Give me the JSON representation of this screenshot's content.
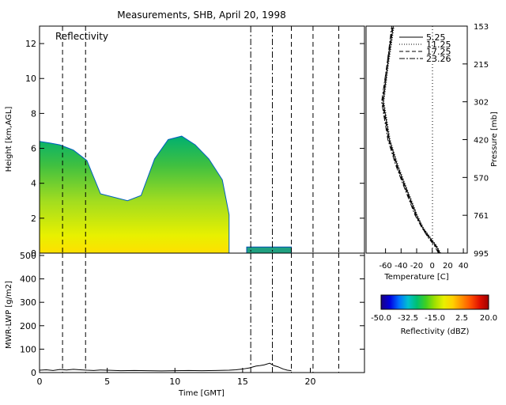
{
  "title": "Measurements, SHB, April 20, 1998",
  "chart_data": [
    {
      "type": "heatmap",
      "annotation": "Reflectivity",
      "ylabel": "Height [km,AGL]",
      "xlim": [
        0,
        24
      ],
      "ylim": [
        0,
        13
      ],
      "yticks": [
        0,
        2,
        4,
        6,
        8,
        10,
        12
      ],
      "value_unit": "dBZ",
      "vertical_markers_gmt": [
        1.7,
        3.4,
        15.6,
        17.2,
        18.6,
        20.2,
        22.1
      ],
      "echo_regions": [
        {
          "x": [
            0.0,
            0.8,
            1.5,
            2.5,
            3.5,
            4.5,
            5.5,
            6.5,
            7.5,
            8.5,
            9.5,
            10.5,
            11.5,
            12.5,
            13.5,
            14.0
          ],
          "top": [
            6.4,
            6.3,
            6.2,
            5.9,
            5.3,
            3.4,
            3.2,
            3.0,
            3.3,
            5.4,
            6.5,
            6.7,
            6.2,
            5.4,
            4.2,
            2.2
          ]
        },
        {
          "x_range": [
            15.3,
            18.6
          ],
          "top": 0.35
        }
      ]
    },
    {
      "type": "line",
      "ylabel": "MWR-LWP [g/m2]",
      "xlabel": "Time [GMT]",
      "xlim": [
        0,
        24
      ],
      "ylim": [
        0,
        510
      ],
      "xticks": [
        0,
        5,
        10,
        15,
        20
      ],
      "yticks": [
        0,
        100,
        200,
        300,
        400,
        500
      ],
      "vertical_markers_gmt": [
        1.7,
        3.4,
        15.6,
        17.2,
        18.6,
        20.2,
        22.1
      ],
      "x": [
        0,
        0.5,
        1,
        1.5,
        2,
        2.5,
        3,
        3.5,
        4,
        4.5,
        5,
        6,
        7,
        8,
        9,
        10,
        11,
        12,
        13,
        14,
        14.5,
        15,
        15.5,
        16,
        16.3,
        16.6,
        17,
        17.3,
        17.6,
        18,
        18.3,
        18.6
      ],
      "y": [
        10,
        12,
        9,
        13,
        11,
        14,
        12,
        10,
        9,
        11,
        10,
        8,
        9,
        8,
        7,
        8,
        9,
        8,
        9,
        10,
        12,
        15,
        20,
        28,
        30,
        33,
        40,
        30,
        25,
        15,
        10,
        8
      ]
    },
    {
      "type": "line",
      "xlabel": "Temperature [C]",
      "ylabel": "Pressure [mb]",
      "xlim": [
        -85,
        45
      ],
      "xticks": [
        -60,
        -40,
        -20,
        0,
        20,
        40
      ],
      "pressure_ticks": [
        153,
        215,
        302,
        420,
        570,
        761,
        995
      ],
      "legend_position": "top-right",
      "series": [
        {
          "name": "5.25",
          "temp": [
            10,
            5,
            -3,
            -12,
            -20,
            -28,
            -36,
            -45,
            -55,
            -63,
            -57,
            -50
          ],
          "pressure": [
            995,
            950,
            900,
            840,
            761,
            680,
            600,
            520,
            420,
            302,
            215,
            153
          ]
        },
        {
          "name": "11.25",
          "temp": [
            11,
            6,
            -2,
            -11,
            -19,
            -27,
            -35,
            -44,
            -54,
            -62,
            -56,
            -49
          ],
          "pressure": [
            995,
            950,
            900,
            840,
            761,
            680,
            600,
            520,
            420,
            302,
            215,
            153
          ]
        },
        {
          "name": "17.25",
          "temp": [
            9,
            4,
            -4,
            -13,
            -21,
            -29,
            -37,
            -46,
            -56,
            -64,
            -58,
            -51
          ],
          "pressure": [
            995,
            950,
            900,
            840,
            761,
            680,
            600,
            520,
            420,
            302,
            215,
            153
          ]
        },
        {
          "name": "23.26",
          "temp": [
            8,
            3,
            -5,
            -13,
            -22,
            -30,
            -38,
            -47,
            -57,
            -65,
            -58,
            -52
          ],
          "pressure": [
            995,
            950,
            900,
            840,
            761,
            680,
            600,
            520,
            420,
            302,
            215,
            153
          ]
        }
      ]
    }
  ],
  "colorbar": {
    "label": "Reflectivity (dBZ)",
    "tick_labels": [
      "-50.0",
      "-32.5",
      "-15.0",
      "2.5",
      "20.0"
    ],
    "colors": [
      "#1a0080",
      "#0000e0",
      "#0070ff",
      "#00c0d0",
      "#00c070",
      "#40d020",
      "#a0e000",
      "#e8f000",
      "#ffd000",
      "#ff9000",
      "#ff5000",
      "#e01000",
      "#a00000"
    ]
  }
}
